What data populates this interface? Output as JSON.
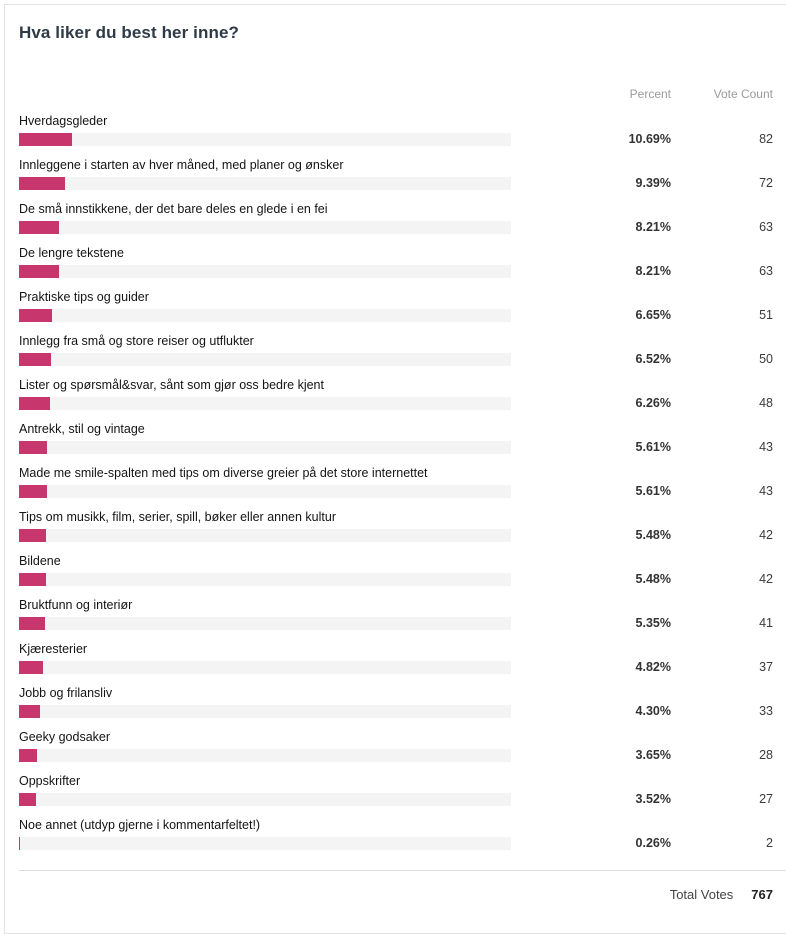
{
  "title": "Hva liker du best her inne?",
  "columns": {
    "percent": "Percent",
    "votes": "Vote Count"
  },
  "colors": {
    "bar_fill": "#c7376e",
    "bar_track": "#f4f4f5",
    "title_text": "#2e3a45"
  },
  "rows": [
    {
      "label": "Hverdagsgleder",
      "percent": "10.69%",
      "percent_value": 10.69,
      "votes": "82"
    },
    {
      "label": "Innleggene i starten av hver måned, med planer og ønsker",
      "percent": "9.39%",
      "percent_value": 9.39,
      "votes": "72"
    },
    {
      "label": "De små innstikkene, der det bare deles en glede i en fei",
      "percent": "8.21%",
      "percent_value": 8.21,
      "votes": "63"
    },
    {
      "label": "De lengre tekstene",
      "percent": "8.21%",
      "percent_value": 8.21,
      "votes": "63"
    },
    {
      "label": "Praktiske tips og guider",
      "percent": "6.65%",
      "percent_value": 6.65,
      "votes": "51"
    },
    {
      "label": "Innlegg fra små og store reiser og utflukter",
      "percent": "6.52%",
      "percent_value": 6.52,
      "votes": "50"
    },
    {
      "label": "Lister og spørsmål&svar, sånt som gjør oss bedre kjent",
      "percent": "6.26%",
      "percent_value": 6.26,
      "votes": "48"
    },
    {
      "label": "Antrekk, stil og vintage",
      "percent": "5.61%",
      "percent_value": 5.61,
      "votes": "43"
    },
    {
      "label": "Made me smile-spalten med tips om diverse greier på det store internettet",
      "percent": "5.61%",
      "percent_value": 5.61,
      "votes": "43"
    },
    {
      "label": "Tips om musikk, film, serier, spill, bøker eller annen kultur",
      "percent": "5.48%",
      "percent_value": 5.48,
      "votes": "42"
    },
    {
      "label": "Bildene",
      "percent": "5.48%",
      "percent_value": 5.48,
      "votes": "42"
    },
    {
      "label": "Bruktfunn og interiør",
      "percent": "5.35%",
      "percent_value": 5.35,
      "votes": "41"
    },
    {
      "label": "Kjæresterier",
      "percent": "4.82%",
      "percent_value": 4.82,
      "votes": "37"
    },
    {
      "label": "Jobb og frilansliv",
      "percent": "4.30%",
      "percent_value": 4.3,
      "votes": "33"
    },
    {
      "label": "Geeky godsaker",
      "percent": "3.65%",
      "percent_value": 3.65,
      "votes": "28"
    },
    {
      "label": "Oppskrifter",
      "percent": "3.52%",
      "percent_value": 3.52,
      "votes": "27"
    },
    {
      "label": "Noe annet (utdyp gjerne i kommentarfeltet!)",
      "percent": "0.26%",
      "percent_value": 0.26,
      "votes": "2"
    }
  ],
  "footer": {
    "total_label": "Total Votes",
    "total_value": "767"
  },
  "chart_data": {
    "type": "bar",
    "orientation": "horizontal",
    "title": "Hva liker du best her inne?",
    "categories": [
      "Hverdagsgleder",
      "Innleggene i starten av hver måned, med planer og ønsker",
      "De små innstikkene, der det bare deles en glede i en fei",
      "De lengre tekstene",
      "Praktiske tips og guider",
      "Innlegg fra små og store reiser og utflukter",
      "Lister og spørsmål&svar, sånt som gjør oss bedre kjent",
      "Antrekk, stil og vintage",
      "Made me smile-spalten med tips om diverse greier på det store internettet",
      "Tips om musikk, film, serier, spill, bøker eller annen kultur",
      "Bildene",
      "Bruktfunn og interiør",
      "Kjæresterier",
      "Jobb og frilansliv",
      "Geeky godsaker",
      "Oppskrifter",
      "Noe annet (utdyp gjerne i kommentarfeltet!)"
    ],
    "series": [
      {
        "name": "Percent",
        "values": [
          10.69,
          9.39,
          8.21,
          8.21,
          6.65,
          6.52,
          6.26,
          5.61,
          5.61,
          5.48,
          5.48,
          5.35,
          4.82,
          4.3,
          3.65,
          3.52,
          0.26
        ]
      },
      {
        "name": "Vote Count",
        "values": [
          82,
          72,
          63,
          63,
          51,
          50,
          48,
          43,
          43,
          42,
          42,
          41,
          37,
          33,
          28,
          27,
          2
        ]
      }
    ],
    "total_votes": 767,
    "xlim": [
      0,
      100
    ],
    "bar_color": "#c7376e",
    "grid": false,
    "legend": false
  }
}
